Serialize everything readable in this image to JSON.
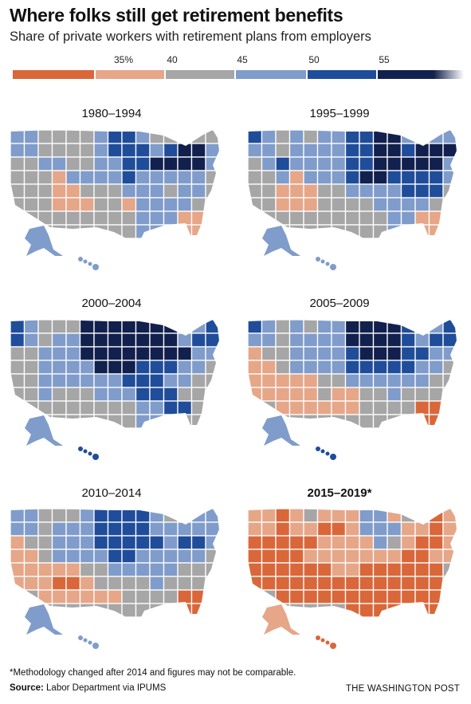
{
  "header": {
    "title": "Where folks still get retirement benefits",
    "subtitle": "Share of private workers with retirement plans from employers"
  },
  "legend": {
    "ticks": [
      "35%",
      "40",
      "45",
      "50",
      "55"
    ],
    "bins": [
      {
        "color": "#d9673a"
      },
      {
        "color": "#e6a688"
      },
      {
        "color": "#a6a6a6"
      },
      {
        "color": "#7f9ccb"
      },
      {
        "color": "#1f4d9a"
      },
      {
        "color": "#12204e"
      }
    ]
  },
  "palette": {
    "O": "#d9673a",
    "P": "#e6a688",
    "G": "#a6a6a6",
    "L": "#7f9ccb",
    "B": "#1f4d9a",
    "N": "#12204e"
  },
  "maps": [
    {
      "period": "1980–1994",
      "emphasis": false,
      "grid": [
        "LLGGGGLBBLGGGGG",
        "LLGGGGLBBBLBNNL",
        "GGLLGGLLBBNNNNL",
        "GGGPLLLLBLLLLLG",
        "GGGPPGGGLLLGLLG",
        "GGGPPPGGPLLLLGG",
        "GGGGGGGGGLLLPPG",
        "GGGGGGGGGLLLPPG"
      ],
      "alaska": "L",
      "hawaii": "L"
    },
    {
      "period": "1995–1999",
      "emphasis": false,
      "grid": [
        "BLGLGLLBBNNLLLL",
        "LLGLLLLBBNNBNNN",
        "GLBLLLLBBNNNNNL",
        "GGLPLLLBNNBBBBL",
        "GGPPPGGLLLLBBBG",
        "GGPPPGGGGLLLLGG",
        "GGGGGGGGGGLLPPG",
        "GGGGGGGGGGLLPPG"
      ],
      "alaska": "L",
      "hawaii": "L"
    },
    {
      "period": "2000–2004",
      "emphasis": false,
      "grid": [
        "BLGGGNNNNNNNLLB",
        "BLGLLNNNNNNNLBB",
        "GGLLLNNNNNNNNLL",
        "GGLLLLNNNBBBLLG",
        "GGLLLLLLBBBLLGG",
        "GGLGGGLLLBBBGGG",
        "GGGGGGGGGLLBBGG",
        "GGGGGGGGGLLBGGG"
      ],
      "alaska": "L",
      "hawaii": "B"
    },
    {
      "period": "2005–2009",
      "emphasis": false,
      "grid": [
        "BLGLGLLNNNNBLLB",
        "LLGLLLLNNNNBLBB",
        "PGGLLLLBNNNBBLL",
        "PPGLLLLBBBBBLLG",
        "PPPPPGGLLLLLLGG",
        "PPPPPGPPGGLGGGG",
        "GGPPPPPPGGGGOOG",
        "GGGGGGGGGGGGOOG"
      ],
      "alaska": "L",
      "hawaii": "B"
    },
    {
      "period": "2010–2014",
      "emphasis": false,
      "grid": [
        "LLGGGLBBBBLGLLL",
        "LLGLLLBBBBLLLLL",
        "PGGLLLBBBBBLBBL",
        "PPGLLLLBBLLLLLG",
        "PPPPPGGLLLLLGGG",
        "PPPOOPGGGGLGGGG",
        "GGPPPPPPGGGGOOG",
        "GGGGGGGGGGGGOOG"
      ],
      "alaska": "L",
      "hawaii": "L"
    },
    {
      "period": "2015–2019*",
      "emphasis": true,
      "grid": [
        "PPOPGPPPLLPGGOP",
        "PPOPPOOPLLLPPOP",
        "OOOOOPPPPLGPOOP",
        "OOOOPPPPPPPOOPP",
        "OOOOOOPPOOOOOOG",
        "OOOOOOOOOOOOOOO",
        "GGOOOOOOOOOOOOO",
        "GGGGGGGOOOOOOOO"
      ],
      "alaska": "P",
      "hawaii": "O"
    }
  ],
  "footer": {
    "footnote": "*Methodology changed after 2014 and figures may not be comparable.",
    "source_label": "Source:",
    "source_text": "Labor Department via IPUMS",
    "credit": "THE WASHINGTON POST"
  }
}
